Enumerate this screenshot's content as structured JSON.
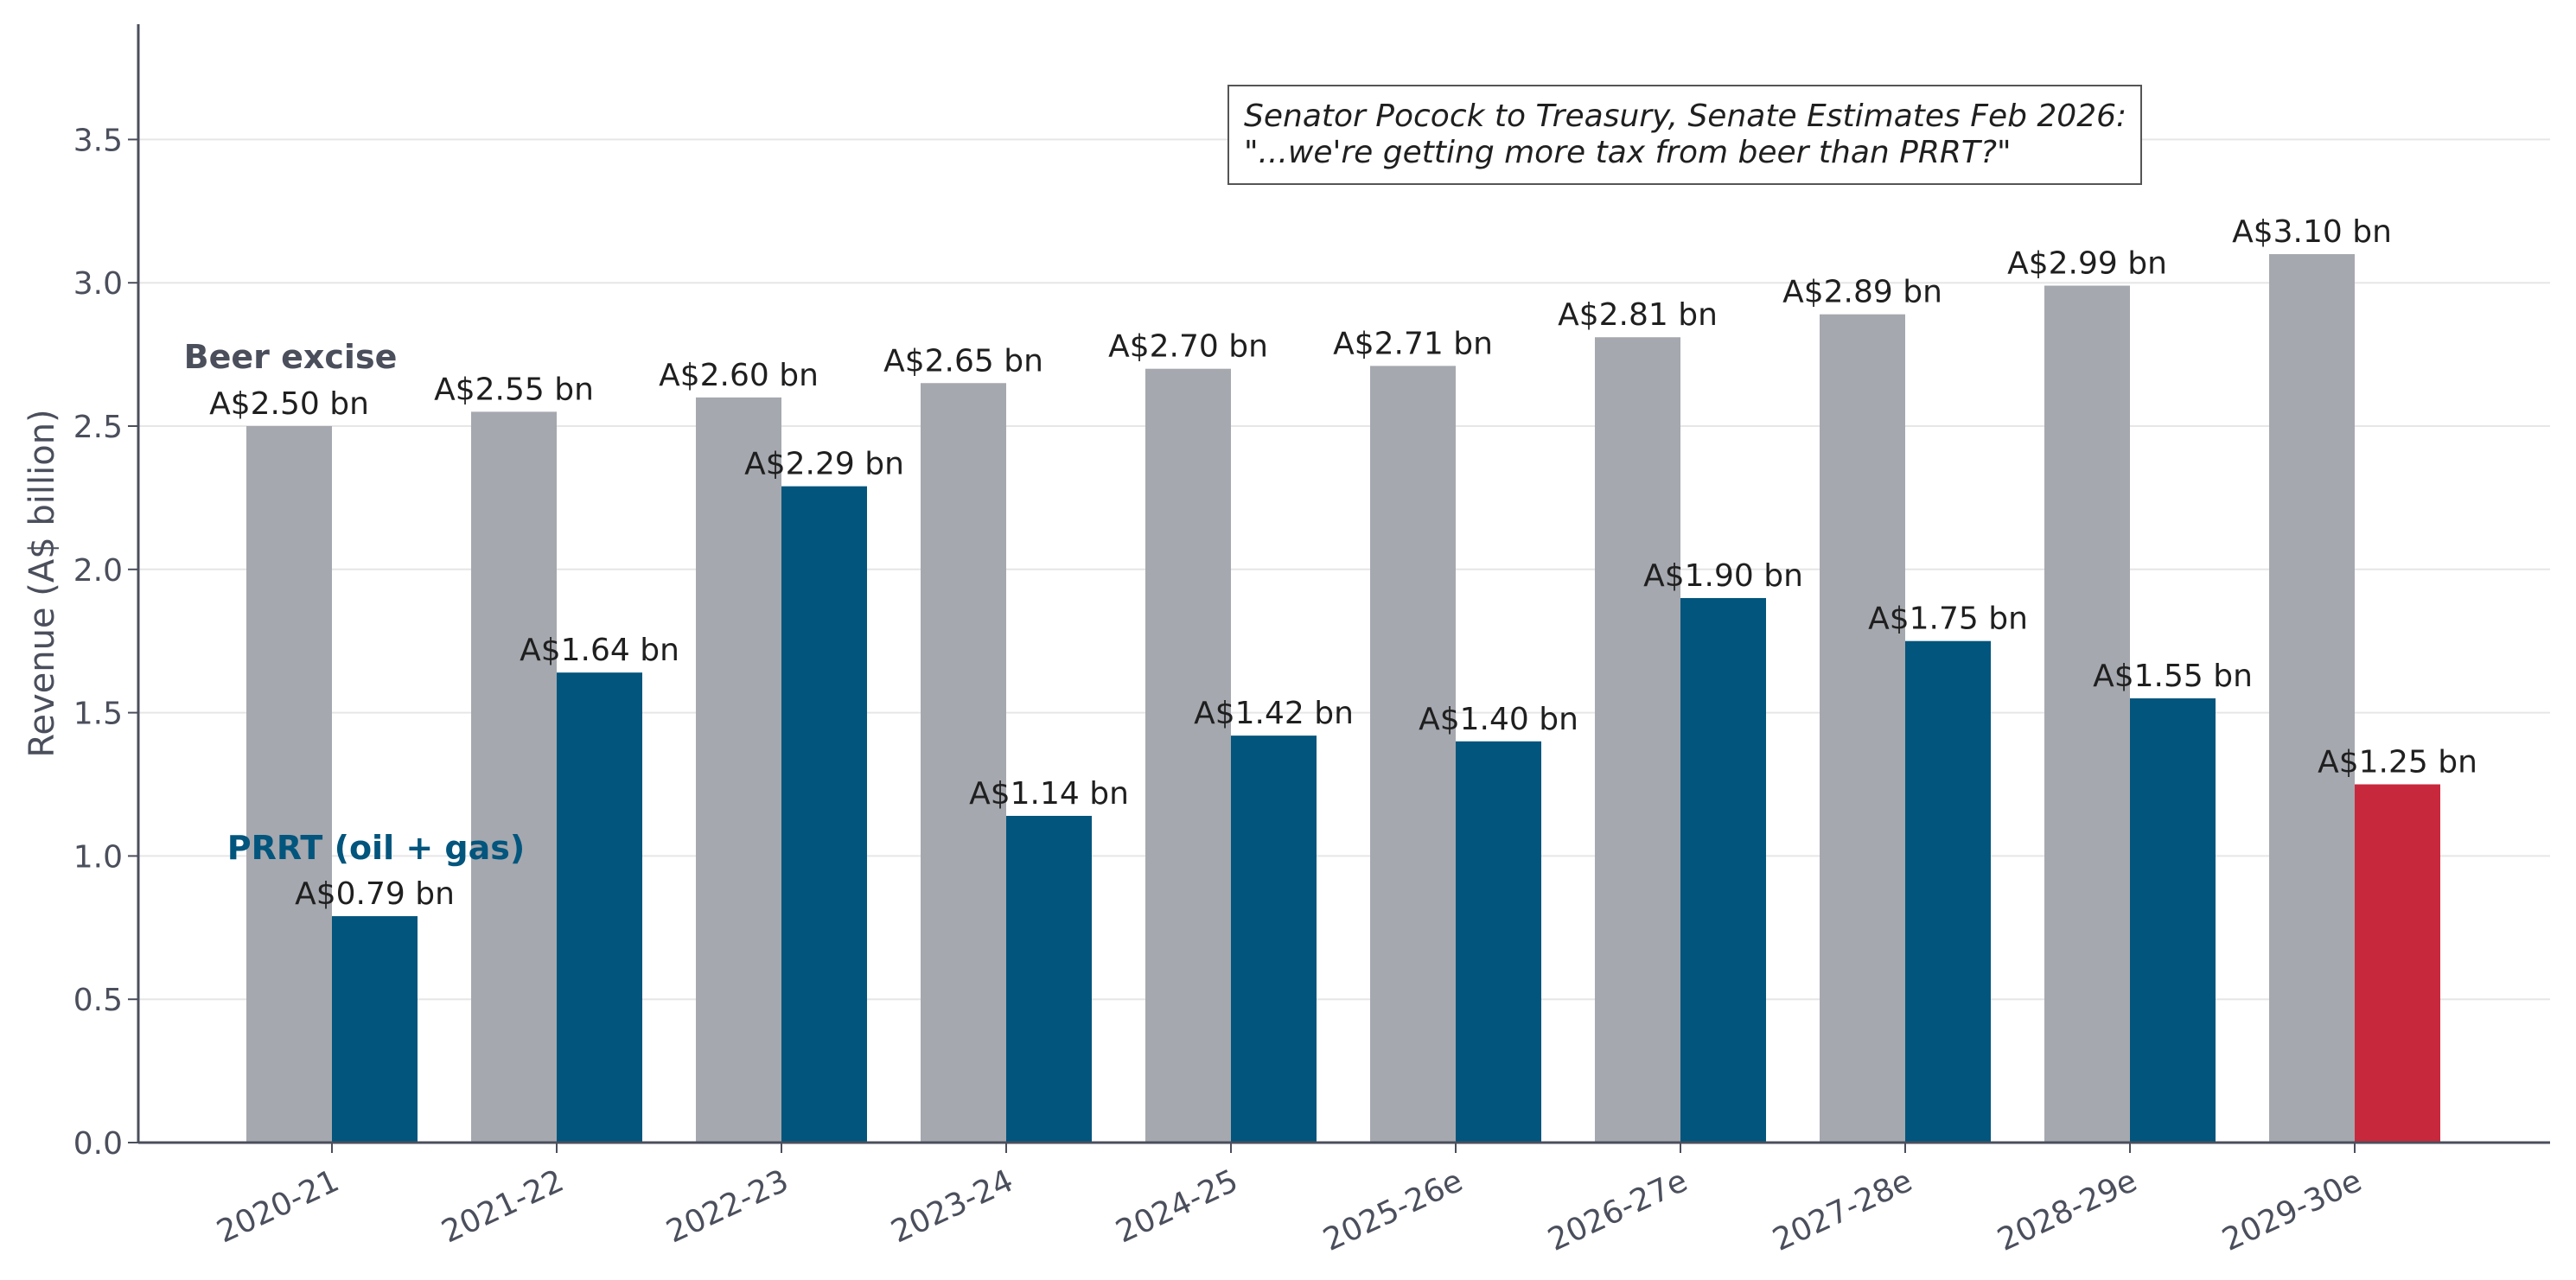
{
  "chart_data": {
    "type": "bar",
    "categories": [
      "2020-21",
      "2021-22",
      "2022-23",
      "2023-24",
      "2024-25",
      "2025-26e",
      "2026-27e",
      "2027-28e",
      "2028-29e",
      "2029-30e"
    ],
    "series": [
      {
        "name": "Beer excise",
        "color": "#a5a8ae",
        "values": [
          2.5,
          2.55,
          2.6,
          2.65,
          2.7,
          2.71,
          2.81,
          2.89,
          2.99,
          3.1
        ],
        "labels": [
          "A$2.50 bn",
          "A$2.55 bn",
          "A$2.60 bn",
          "A$2.65 bn",
          "A$2.70 bn",
          "A$2.71 bn",
          "A$2.81 bn",
          "A$2.89 bn",
          "A$2.99 bn",
          "A$3.10 bn"
        ]
      },
      {
        "name": "PRRT (oil + gas)",
        "color": "#02557d",
        "highlight_last_color": "#c8283c",
        "values": [
          0.79,
          1.64,
          2.29,
          1.14,
          1.42,
          1.4,
          1.9,
          1.75,
          1.55,
          1.25
        ],
        "labels": [
          "A$0.79 bn",
          "A$1.64 bn",
          "A$2.29 bn",
          "A$1.14 bn",
          "A$1.42 bn",
          "A$1.40 bn",
          "A$1.90 bn",
          "A$1.75 bn",
          "A$1.55 bn",
          "A$1.25 bn"
        ]
      }
    ],
    "ylabel": "Revenue (A$ billion)",
    "xlabel": "",
    "title": "",
    "ylim": [
      0,
      3.9
    ],
    "yticks": [
      0.0,
      0.5,
      1.0,
      1.5,
      2.0,
      2.5,
      3.0,
      3.5
    ],
    "ytick_labels": [
      "0.0",
      "0.5",
      "1.0",
      "1.5",
      "2.0",
      "2.5",
      "3.0",
      "3.5"
    ],
    "grid": "horizontal",
    "annotation": {
      "line1": "Senator Pocock to Treasury, Senate Estimates Feb 2026:",
      "line2": "\"...we're getting more tax from beer than PRRT?\""
    },
    "series_label_colors": {
      "beer": "#4b4f5c",
      "prrt": "#02557d"
    }
  }
}
